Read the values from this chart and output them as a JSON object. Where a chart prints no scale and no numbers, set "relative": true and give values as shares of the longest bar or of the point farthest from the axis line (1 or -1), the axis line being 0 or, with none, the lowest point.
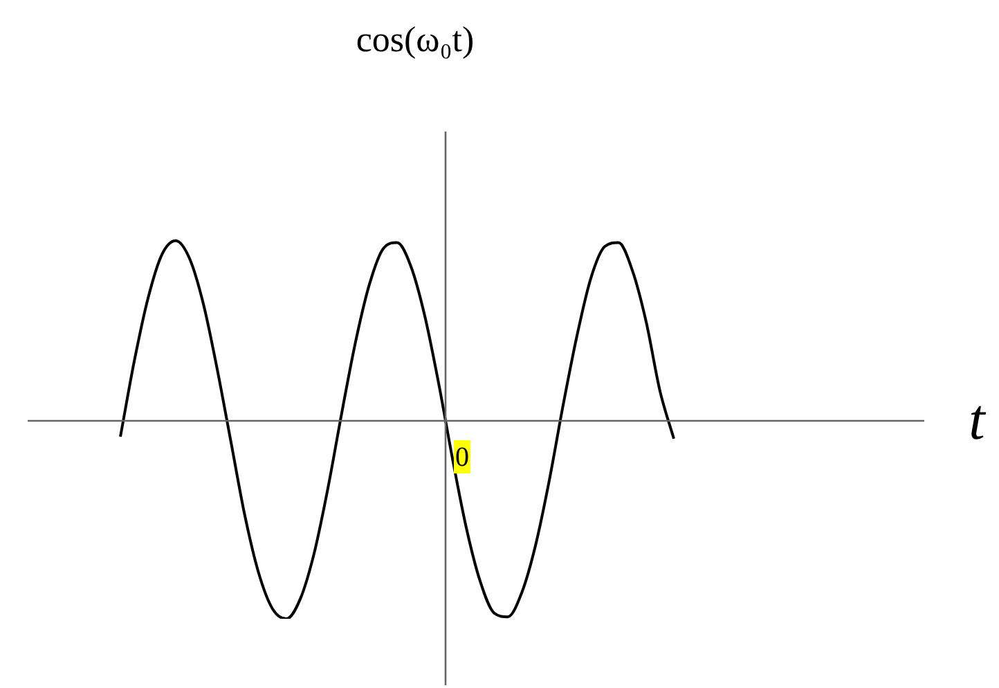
{
  "chart_data": {
    "type": "line",
    "title": "cos(ω₀t)",
    "xlabel": "t",
    "relative": true,
    "legend": false,
    "marker": "none",
    "annotations": [
      "0"
    ],
    "categories": [
      null,
      null,
      null,
      null,
      null,
      null,
      null,
      null,
      null,
      null,
      null,
      null,
      null,
      null,
      null,
      null,
      null,
      null,
      null,
      null,
      null,
      null,
      null,
      null,
      null,
      null,
      null,
      null,
      null,
      null,
      null,
      null,
      null,
      null,
      null,
      null,
      null,
      null,
      null,
      null,
      null
    ],
    "series": [
      {
        "color": "#000000",
        "values": [
          -0.08,
          0.3,
          0.62,
          0.84,
          0.91,
          0.82,
          0.59,
          0.26,
          -0.11,
          -0.48,
          -0.77,
          -0.95,
          -1.0,
          -0.9,
          -0.67,
          -0.34,
          0.04,
          0.4,
          0.69,
          0.87,
          0.9,
          0.78,
          0.53,
          0.19,
          -0.19,
          -0.54,
          -0.81,
          -0.97,
          -0.99,
          -0.87,
          -0.63,
          -0.3,
          0.08,
          0.43,
          0.72,
          0.88,
          0.9,
          0.76,
          0.5,
          0.15,
          -0.09
        ]
      }
    ]
  }
}
